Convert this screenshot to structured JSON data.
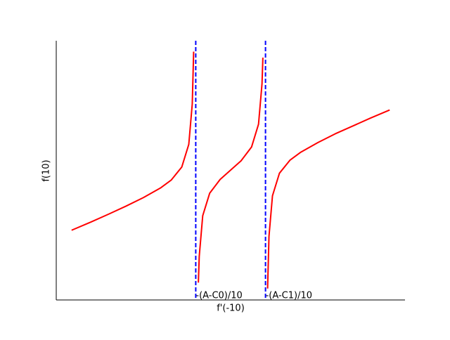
{
  "chart_data": {
    "type": "line",
    "xlabel": "f'(-10)",
    "ylabel": "f(10)",
    "x": [
      0.44,
      1,
      1.5,
      2,
      2.5,
      3,
      3.3,
      3.6,
      3.8,
      3.9,
      3.94,
      4,
      4.075,
      4.1,
      4.2,
      4.4,
      4.7,
      5,
      5.3,
      5.6,
      5.8,
      5.9,
      5.925,
      6,
      6.06,
      6.1,
      6.2,
      6.4,
      6.7,
      7,
      7.5,
      8,
      8.5,
      9,
      9.56
    ],
    "values": [
      2.69,
      3.01,
      3.31,
      3.62,
      3.95,
      4.33,
      4.63,
      5.13,
      6.0,
      7.56,
      9.58,
      null,
      0.67,
      1.68,
      3.25,
      4.12,
      4.65,
      5.01,
      5.37,
      5.9,
      6.78,
      8.34,
      9.35,
      null,
      0.44,
      2.46,
      4.02,
      4.89,
      5.39,
      5.69,
      6.07,
      6.41,
      6.71,
      7.01,
      7.33
    ],
    "color": "#ff0000",
    "xlim": [
      0,
      10
    ],
    "ylim": [
      0,
      10
    ],
    "xticks": [
      {
        "value": 4,
        "label": "-(A-C0)/10"
      },
      {
        "value": 6,
        "label": "-(A-C1)/10"
      }
    ],
    "grid": true,
    "grid_color": "#0000ff",
    "grid_style": "dashed"
  }
}
